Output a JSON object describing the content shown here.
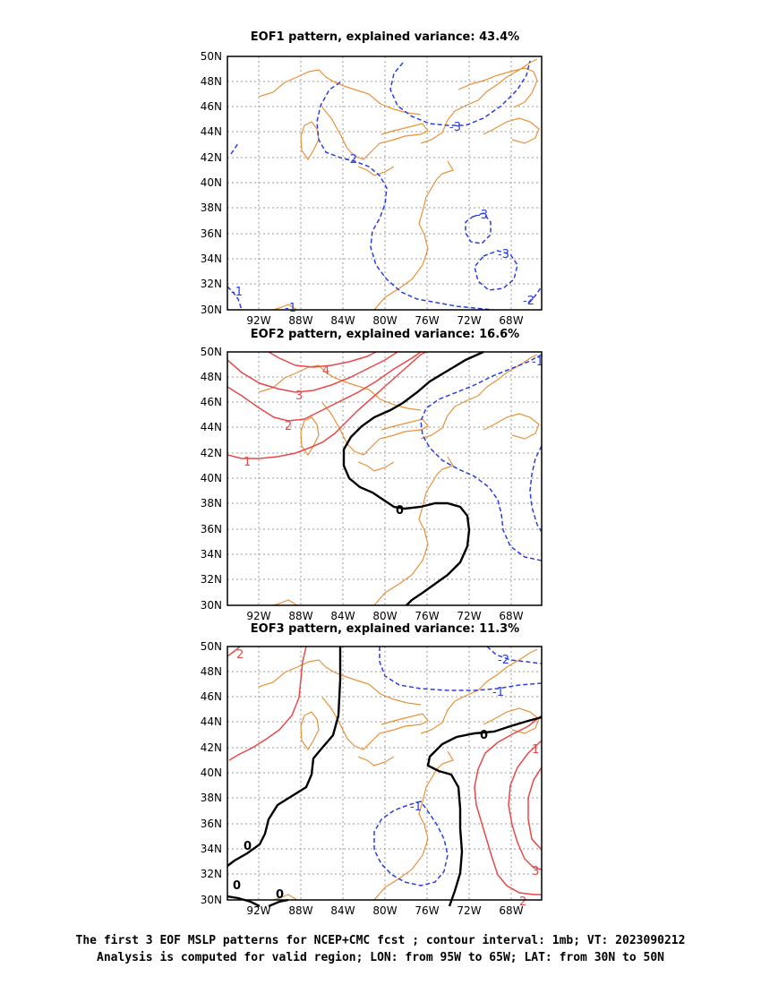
{
  "panels": [
    {
      "title": "EOF1 pattern, explained variance: 43.4%",
      "contour_labels": {
        "neg": [
          "-3",
          "-2",
          "-3",
          "-3",
          "-1",
          "-1",
          "-2"
        ],
        "pos": [],
        "zero": []
      }
    },
    {
      "title": "EOF2 pattern, explained variance: 16.6%",
      "contour_labels": {
        "neg": [
          "-1"
        ],
        "pos": [
          "4",
          "3",
          "2",
          "1"
        ],
        "zero": [
          "0"
        ]
      }
    },
    {
      "title": "EOF3 pattern, explained variance: 11.3%",
      "contour_labels": {
        "neg": [
          "-2",
          "-1",
          "-1"
        ],
        "pos": [
          "2",
          "1",
          "3",
          "2"
        ],
        "zero": [
          "0",
          "0",
          "0",
          "0"
        ]
      }
    }
  ],
  "axes": {
    "lat_ticks": [
      "50N",
      "48N",
      "46N",
      "44N",
      "42N",
      "40N",
      "38N",
      "36N",
      "34N",
      "32N",
      "30N"
    ],
    "lon_ticks": [
      "92W",
      "88W",
      "84W",
      "80W",
      "76W",
      "72W",
      "68W"
    ]
  },
  "caption": {
    "line1": "The first 3 EOF MSLP patterns for NCEP+CMC fcst ; contour interval: 1mb; VT: 2023090212",
    "line2": "Analysis is computed for valid region; LON: from 95W to 65W; LAT: from 30N to 50N"
  },
  "colors": {
    "coast": "#e8923a",
    "negative": "#2a3fe0",
    "positive": "#e84848",
    "zero": "#000000",
    "grid": "#9a9a9a"
  }
}
